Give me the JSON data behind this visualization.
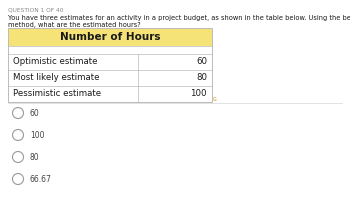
{
  "question_label": "QUESTION 1 OF 40",
  "question_text_line1": "You have three estimates for an activity in a project budget, as shown in the table below. Using the beta distribution",
  "question_text_line2": "method, what are the estimated hours?",
  "table_header": "Number of Hours",
  "table_header_bg": "#F5E378",
  "table_rows": [
    [
      "Optimistic estimate",
      "60"
    ],
    [
      "Most likely estimate",
      "80"
    ],
    [
      "Pessimistic estimate",
      "100"
    ]
  ],
  "options": [
    "60",
    "100",
    "80",
    "66.67"
  ],
  "bg_color": "#ffffff",
  "table_border_color": "#bbbbbb",
  "text_color": "#1a1a1a",
  "question_label_color": "#888888",
  "option_text_color": "#444444",
  "separator_color": "#dddddd",
  "watermark_color": "#cc8800"
}
